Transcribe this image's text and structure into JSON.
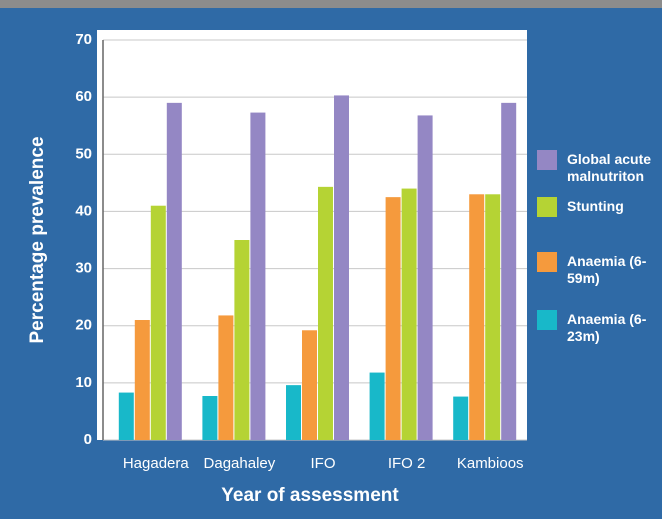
{
  "chart_data": {
    "type": "bar",
    "categories": [
      "Hagadera",
      "Dagahaley",
      "IFO",
      "IFO 2",
      "Kambioos"
    ],
    "series": [
      {
        "name": "Global acute malnutriton",
        "color": "#9487c4",
        "values": [
          59,
          57.3,
          60.3,
          56.8,
          59
        ]
      },
      {
        "name": "Stunting",
        "color": "#b5d334",
        "values": [
          41,
          35,
          44.3,
          44,
          43
        ]
      },
      {
        "name": "Anaemia (6-59m)",
        "color": "#f59a3d",
        "values": [
          21,
          21.8,
          19.2,
          42.5,
          43
        ]
      },
      {
        "name": "Anaemia (6-23m)",
        "color": "#18b8c9",
        "values": [
          8.3,
          7.7,
          9.6,
          11.8,
          7.6
        ]
      }
    ],
    "y_label": "Percentage prevalence",
    "x_label": "Year of assessment",
    "ylim": [
      0,
      70
    ],
    "yticks": [
      0,
      10,
      20,
      30,
      40,
      50,
      60,
      70
    ],
    "grid": true
  }
}
